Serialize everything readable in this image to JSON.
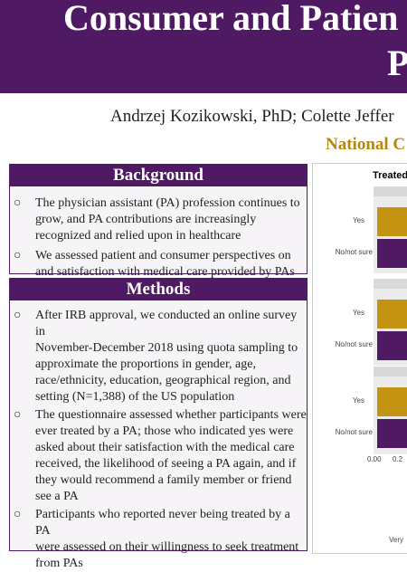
{
  "header": {
    "title_line1": "Consumer and Patien",
    "title_line2": "P",
    "authors": "Andrzej Kozikowski, PhD; Colette Jeffer",
    "affiliation": "National C"
  },
  "sections": [
    {
      "title": "Background",
      "items": [
        [
          "The physician assistant (PA) profession continues to",
          "grow, and PA contributions are increasingly",
          "recognized and relied upon in healthcare"
        ],
        [
          "We assessed patient and consumer perspectives on",
          "and satisfaction with medical care provided by PAs"
        ]
      ]
    },
    {
      "title": "Methods",
      "items": [
        [
          "After IRB approval, we conducted an online survey in",
          "November-December 2018 using quota sampling to",
          "approximate the proportions in gender, age,",
          "race/ethnicity, education, geographical region, and",
          "setting (N=1,388) of the US population"
        ],
        [
          "The questionnaire assessed whether participants were",
          "ever treated by a PA; those who indicated yes were",
          "asked about their satisfaction with the medical care",
          "received, the likelihood of seeing a PA again, and if",
          "they would recommend a family member or friend",
          "see a PA"
        ],
        [
          "Participants who reported never being treated by a PA",
          "were assessed on their willingness to seek treatment",
          "from PAs"
        ]
      ]
    }
  ],
  "figure": {
    "title": "Treated",
    "panels": [
      {
        "labels": [
          "Yes",
          "No/not sure"
        ]
      },
      {
        "labels": [
          "Yes",
          "No/not sure"
        ]
      },
      {
        "labels": [
          "Yes",
          "No/not sure"
        ]
      }
    ],
    "xticks": [
      "0.00",
      "0.2"
    ],
    "footer": "Very"
  }
}
